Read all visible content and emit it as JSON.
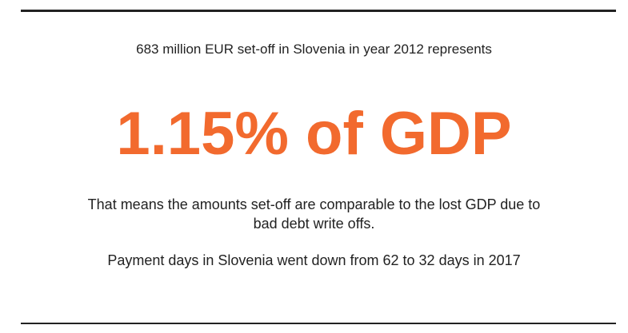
{
  "intro": "683 million EUR set-off in Slovenia in year 2012 represents",
  "headline": "1.15% of GDP",
  "explanation_line1": "That means the amounts set-off are comparable to the lost GDP due to",
  "explanation_line2": "bad debt write offs.",
  "payment_days": "Payment days in Slovenia went down from 62 to 32 days in 2017"
}
